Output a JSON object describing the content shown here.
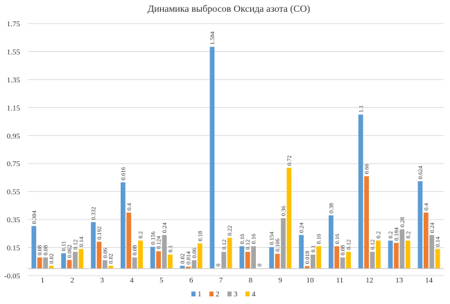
{
  "chart_data": {
    "type": "bar",
    "title": "Динамика выбросов Оксида азота (CO)",
    "xlabel": "",
    "ylabel": "",
    "ylim": [
      -0.05,
      1.75
    ],
    "yticks": [
      "1.75",
      "1.55",
      "1.35",
      "1.15",
      "0.95",
      "0.75",
      "0.55",
      "0.35",
      "0.15",
      "-0.05"
    ],
    "grid": "horizontal",
    "legend_position": "bottom",
    "categories": [
      "1",
      "2",
      "3",
      "4",
      "5",
      "6",
      "7",
      "8",
      "9",
      "10",
      "11",
      "12",
      "13",
      "14"
    ],
    "series": [
      {
        "name": "1",
        "color": "#5B9BD5",
        "values": [
          0.304,
          0.11,
          0.332,
          0.616,
          0.156,
          0.02,
          1.584,
          0.16,
          0.154,
          0.24,
          0.38,
          1.1,
          0.2,
          0.624
        ],
        "labels": [
          "0.304",
          "0.11",
          "0.332",
          "0.616",
          "0.156",
          "0.02",
          "1.584",
          "0.16",
          "0.154",
          "0.24",
          "0.38",
          "1.1",
          "0.2",
          "0.624"
        ]
      },
      {
        "name": "2",
        "color": "#ED7D31",
        "values": [
          0.08,
          0.062,
          0.192,
          0.4,
          0.124,
          0.014,
          0,
          0.12,
          0.106,
          0.018,
          0.16,
          0.66,
          0.184,
          0.4
        ],
        "labels": [
          "0.08",
          "0.062",
          "0.192",
          "0.4",
          "0.124",
          "0.014",
          "0",
          "0.12",
          "0.106",
          "0.018",
          "0.16",
          "0.66",
          "0.184",
          "0.4"
        ]
      },
      {
        "name": "3",
        "color": "#A5A5A5",
        "values": [
          0.08,
          0.12,
          0.06,
          0.08,
          0.24,
          0.06,
          0.12,
          0.16,
          0.36,
          0.1,
          0.08,
          0.12,
          0.28,
          0.24
        ],
        "labels": [
          "0.08",
          "0.12",
          "0.06",
          "0.08",
          "0.24",
          "0.06",
          "0.12",
          "0.16",
          "0.36",
          "0.1",
          "0.08",
          "0.12",
          "0.28",
          "0.24"
        ]
      },
      {
        "name": "4",
        "color": "#FFC000",
        "values": [
          0.02,
          0.14,
          0.02,
          0.2,
          0.1,
          0.18,
          0.22,
          0,
          0.72,
          0.16,
          0.12,
          0.2,
          0.2,
          0.14
        ],
        "labels": [
          "0.02",
          "0.14",
          "0.02",
          "0.2",
          "0.1",
          "0.18",
          "0.22",
          "0",
          "0.72",
          "0.16",
          "0.12",
          "0.2",
          "0.2",
          "0.14"
        ]
      }
    ]
  }
}
